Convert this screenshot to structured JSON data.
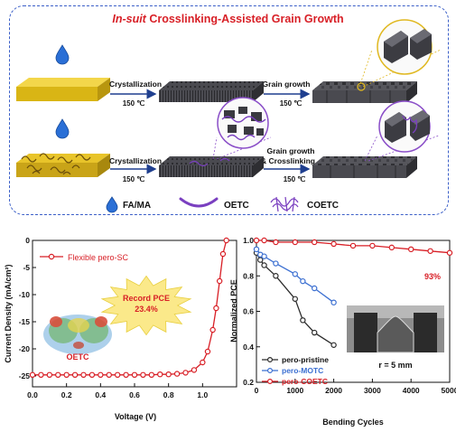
{
  "title": {
    "italic": "In-suit",
    "rest": " Crosslinking-Assisted Grain Growth"
  },
  "process": {
    "row1": {
      "step1_label": "Crystallization",
      "step1_temp": "150 ℃",
      "step2_label": "Grain growth",
      "step2_temp": "150 ℃"
    },
    "row2": {
      "step1_label": "Crystallization",
      "step1_temp": "150 ℃",
      "step2_label_line1": "Grain growth",
      "step2_label_line2": "& Crosslinking",
      "step2_temp": "150 ℃"
    }
  },
  "legend": {
    "fama": "FA/MA",
    "oetc": "OETC",
    "coetc": "COETC"
  },
  "colors": {
    "accent_red": "#d81f26",
    "accent_blue": "#3b5fc8",
    "film_yellow": "#e6c21b",
    "film_dark": "#3a3a3e"
  },
  "chart_data": [
    {
      "type": "line",
      "xlabel": "Voltage (V)",
      "ylabel": "Current Density (mA/cm²)",
      "xlim": [
        0,
        1.2
      ],
      "ylim": [
        -27,
        0
      ],
      "xticks": [
        "0.0",
        "0.2",
        "0.4",
        "0.6",
        "0.8",
        "1.0"
      ],
      "yticks": [
        "0",
        "-5",
        "-10",
        "-15",
        "-20",
        "-25"
      ],
      "series": [
        {
          "name": "Flexible pero-SC",
          "color": "#d81f26",
          "x": [
            0.0,
            0.05,
            0.1,
            0.15,
            0.2,
            0.25,
            0.3,
            0.35,
            0.4,
            0.45,
            0.5,
            0.55,
            0.6,
            0.65,
            0.7,
            0.75,
            0.8,
            0.85,
            0.9,
            0.95,
            1.0,
            1.03,
            1.06,
            1.08,
            1.1,
            1.12,
            1.14
          ],
          "y": [
            -24.8,
            -24.8,
            -24.8,
            -24.8,
            -24.8,
            -24.8,
            -24.8,
            -24.8,
            -24.8,
            -24.8,
            -24.8,
            -24.8,
            -24.8,
            -24.8,
            -24.8,
            -24.7,
            -24.7,
            -24.6,
            -24.4,
            -23.9,
            -22.5,
            -20.5,
            -16.5,
            -12.5,
            -7.5,
            -2.5,
            0
          ]
        }
      ],
      "annotation": {
        "line1": "Record PCE",
        "line2": "23.4%"
      },
      "molecule_label": "OETC",
      "legend_position": "top-left"
    },
    {
      "type": "line",
      "xlabel": "Bending Cycles",
      "ylabel": "Normalized PCE",
      "xlim": [
        0,
        5000
      ],
      "ylim": [
        0.2,
        1.0
      ],
      "xticks": [
        "0",
        "1000",
        "2000",
        "3000",
        "4000",
        "5000"
      ],
      "yticks": [
        "1.0",
        "0.8",
        "0.6",
        "0.4",
        "0.2"
      ],
      "series": [
        {
          "name": "pero-pristine",
          "color": "#2b2b2b",
          "x": [
            0,
            100,
            200,
            500,
            1000,
            1200,
            1500,
            2000
          ],
          "y": [
            0.93,
            0.89,
            0.86,
            0.8,
            0.67,
            0.55,
            0.48,
            0.41
          ]
        },
        {
          "name": "pero-MOTC",
          "color": "#3b6fd1",
          "x": [
            0,
            100,
            200,
            500,
            1000,
            1200,
            1500,
            2000
          ],
          "y": [
            0.95,
            0.92,
            0.91,
            0.87,
            0.81,
            0.77,
            0.73,
            0.65
          ]
        },
        {
          "name": "pero-COETC",
          "color": "#d81f26",
          "x": [
            0,
            200,
            500,
            1000,
            1500,
            2000,
            2500,
            3000,
            3500,
            4000,
            4500,
            5000
          ],
          "y": [
            1.0,
            1.0,
            0.99,
            0.99,
            0.99,
            0.98,
            0.97,
            0.97,
            0.96,
            0.95,
            0.94,
            0.93
          ]
        }
      ],
      "end_label": "93%",
      "inset_label": "r = 5 mm",
      "legend_position": "bottom-left"
    }
  ]
}
